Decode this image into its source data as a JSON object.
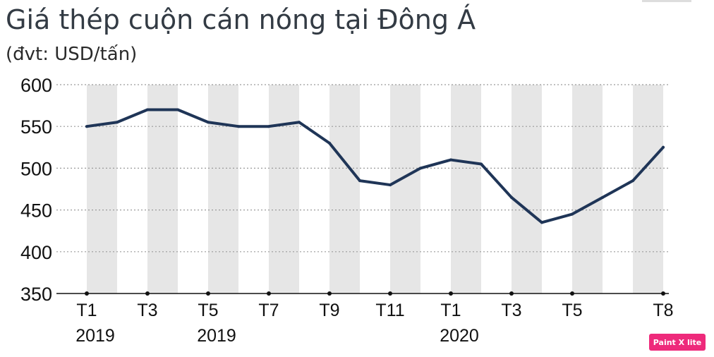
{
  "chart_data": {
    "type": "line",
    "title": "Giá thép cuộn cán nóng tại Đông Á",
    "subtitle": "(đvt: USD/tấn)",
    "ylim": [
      350,
      600
    ],
    "yticks": [
      350,
      400,
      450,
      500,
      550,
      600
    ],
    "grid": "horizontal dotted",
    "shaded_bands": "alternate months",
    "x_ticks": [
      {
        "label": "T1",
        "year": "2019"
      },
      {
        "label": "T3",
        "year": ""
      },
      {
        "label": "T5",
        "year": "2019"
      },
      {
        "label": "T7",
        "year": ""
      },
      {
        "label": "T9",
        "year": ""
      },
      {
        "label": "T11",
        "year": ""
      },
      {
        "label": "T1",
        "year": "2020"
      },
      {
        "label": "T3",
        "year": ""
      },
      {
        "label": "T5",
        "year": ""
      },
      {
        "label": "T8",
        "year": ""
      }
    ],
    "series": [
      {
        "color": "#1f3557",
        "points": [
          {
            "x": "2019-01",
            "y": 550
          },
          {
            "x": "2019-02",
            "y": 555
          },
          {
            "x": "2019-03",
            "y": 570
          },
          {
            "x": "2019-04",
            "y": 570
          },
          {
            "x": "2019-05",
            "y": 555
          },
          {
            "x": "2019-06",
            "y": 550
          },
          {
            "x": "2019-07",
            "y": 550
          },
          {
            "x": "2019-08",
            "y": 555
          },
          {
            "x": "2019-09",
            "y": 530
          },
          {
            "x": "2019-10",
            "y": 485
          },
          {
            "x": "2019-11",
            "y": 480
          },
          {
            "x": "2019-12",
            "y": 500
          },
          {
            "x": "2020-01",
            "y": 510
          },
          {
            "x": "2020-02",
            "y": 505
          },
          {
            "x": "2020-03",
            "y": 465
          },
          {
            "x": "2020-04",
            "y": 435
          },
          {
            "x": "2020-05",
            "y": 445
          },
          {
            "x": "2020-06",
            "y": 465
          },
          {
            "x": "2020-07",
            "y": 485
          },
          {
            "x": "2020-08",
            "y": 525
          }
        ]
      }
    ]
  },
  "watermark": {
    "label": "Paint X lite",
    "color": "#ee2a7b"
  }
}
